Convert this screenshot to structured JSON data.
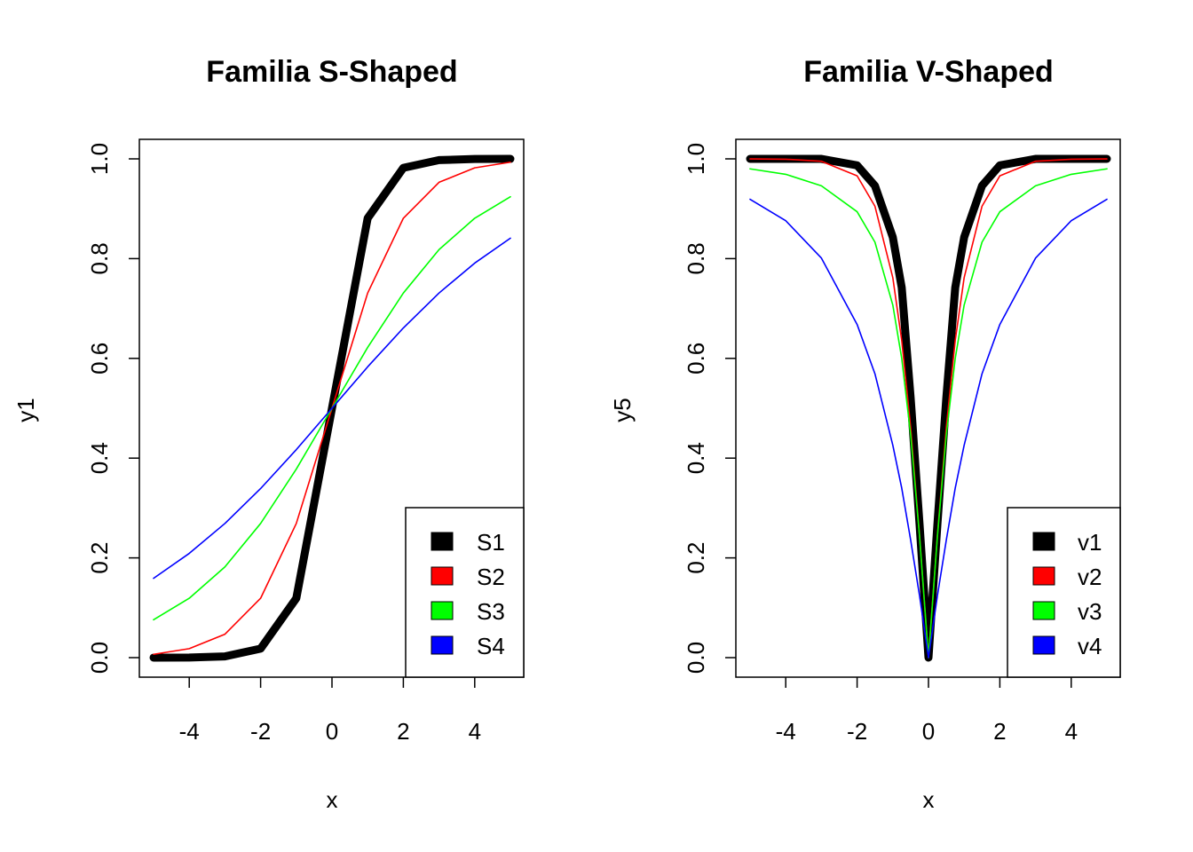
{
  "chart_data": [
    {
      "type": "line",
      "title": "Familia S-Shaped",
      "xlabel": "x",
      "ylabel": "y1",
      "xlim": [
        -5,
        5
      ],
      "ylim": [
        0,
        1
      ],
      "xticks": [
        -4,
        -2,
        0,
        2,
        4
      ],
      "yticks": [
        "0.0",
        "0.2",
        "0.4",
        "0.6",
        "0.8",
        "1.0"
      ],
      "legend_position": "bottom-right",
      "grid": false,
      "x": [
        -5,
        -4,
        -3,
        -2,
        -1,
        0,
        1,
        2,
        3,
        4,
        5
      ],
      "series": [
        {
          "name": "S1",
          "color": "#000000",
          "line_width": "thick",
          "values": [
            0.0001,
            0.0003,
            0.0025,
            0.018,
            0.119,
            0.5,
            0.881,
            0.982,
            0.9975,
            0.9997,
            0.9999
          ]
        },
        {
          "name": "S2",
          "color": "#ff0000",
          "line_width": "thin",
          "values": [
            0.0067,
            0.018,
            0.047,
            0.119,
            0.269,
            0.5,
            0.731,
            0.881,
            0.953,
            0.982,
            0.9933
          ]
        },
        {
          "name": "S3",
          "color": "#00ff00",
          "line_width": "thin",
          "values": [
            0.076,
            0.119,
            0.182,
            0.269,
            0.378,
            0.5,
            0.622,
            0.731,
            0.818,
            0.881,
            0.924
          ]
        },
        {
          "name": "S4",
          "color": "#0000ff",
          "line_width": "thin",
          "values": [
            0.159,
            0.209,
            0.269,
            0.339,
            0.417,
            0.5,
            0.583,
            0.661,
            0.731,
            0.791,
            0.841
          ]
        }
      ]
    },
    {
      "type": "line",
      "title": "Familia V-Shaped",
      "xlabel": "x",
      "ylabel": "y5",
      "xlim": [
        -5,
        5
      ],
      "ylim": [
        0,
        1
      ],
      "xticks": [
        -4,
        -2,
        0,
        2,
        4
      ],
      "yticks": [
        "0.0",
        "0.2",
        "0.4",
        "0.6",
        "0.8",
        "1.0"
      ],
      "legend_position": "bottom-right",
      "grid": false,
      "x": [
        -5,
        -4,
        -3,
        -2,
        -1.5,
        -1,
        -0.75,
        -0.5,
        -0.25,
        0,
        0.25,
        0.5,
        0.75,
        1,
        1.5,
        2,
        3,
        4,
        5
      ],
      "series": [
        {
          "name": "v1",
          "color": "#000000",
          "line_width": "thick",
          "values": [
            1.0,
            1.0,
            0.9999,
            0.987,
            0.946,
            0.843,
            0.742,
            0.521,
            0.267,
            0.0,
            0.267,
            0.521,
            0.742,
            0.843,
            0.946,
            0.987,
            0.9999,
            1.0,
            1.0
          ]
        },
        {
          "name": "v2",
          "color": "#ff0000",
          "line_width": "thin",
          "values": [
            0.9999,
            0.9993,
            0.9952,
            0.966,
            0.905,
            0.762,
            0.636,
            0.462,
            0.245,
            0.0,
            0.245,
            0.462,
            0.636,
            0.762,
            0.905,
            0.966,
            0.9952,
            0.9993,
            0.9999
          ]
        },
        {
          "name": "v3",
          "color": "#00ff00",
          "line_width": "thin",
          "values": [
            0.98,
            0.969,
            0.946,
            0.894,
            0.833,
            0.707,
            0.6,
            0.447,
            0.243,
            0.0,
            0.243,
            0.447,
            0.6,
            0.707,
            0.833,
            0.894,
            0.946,
            0.969,
            0.98
          ]
        },
        {
          "name": "v4",
          "color": "#0000ff",
          "line_width": "thin",
          "values": [
            0.919,
            0.876,
            0.801,
            0.668,
            0.569,
            0.426,
            0.34,
            0.236,
            0.124,
            0.0,
            0.124,
            0.236,
            0.34,
            0.426,
            0.569,
            0.668,
            0.801,
            0.876,
            0.919
          ]
        }
      ]
    }
  ]
}
